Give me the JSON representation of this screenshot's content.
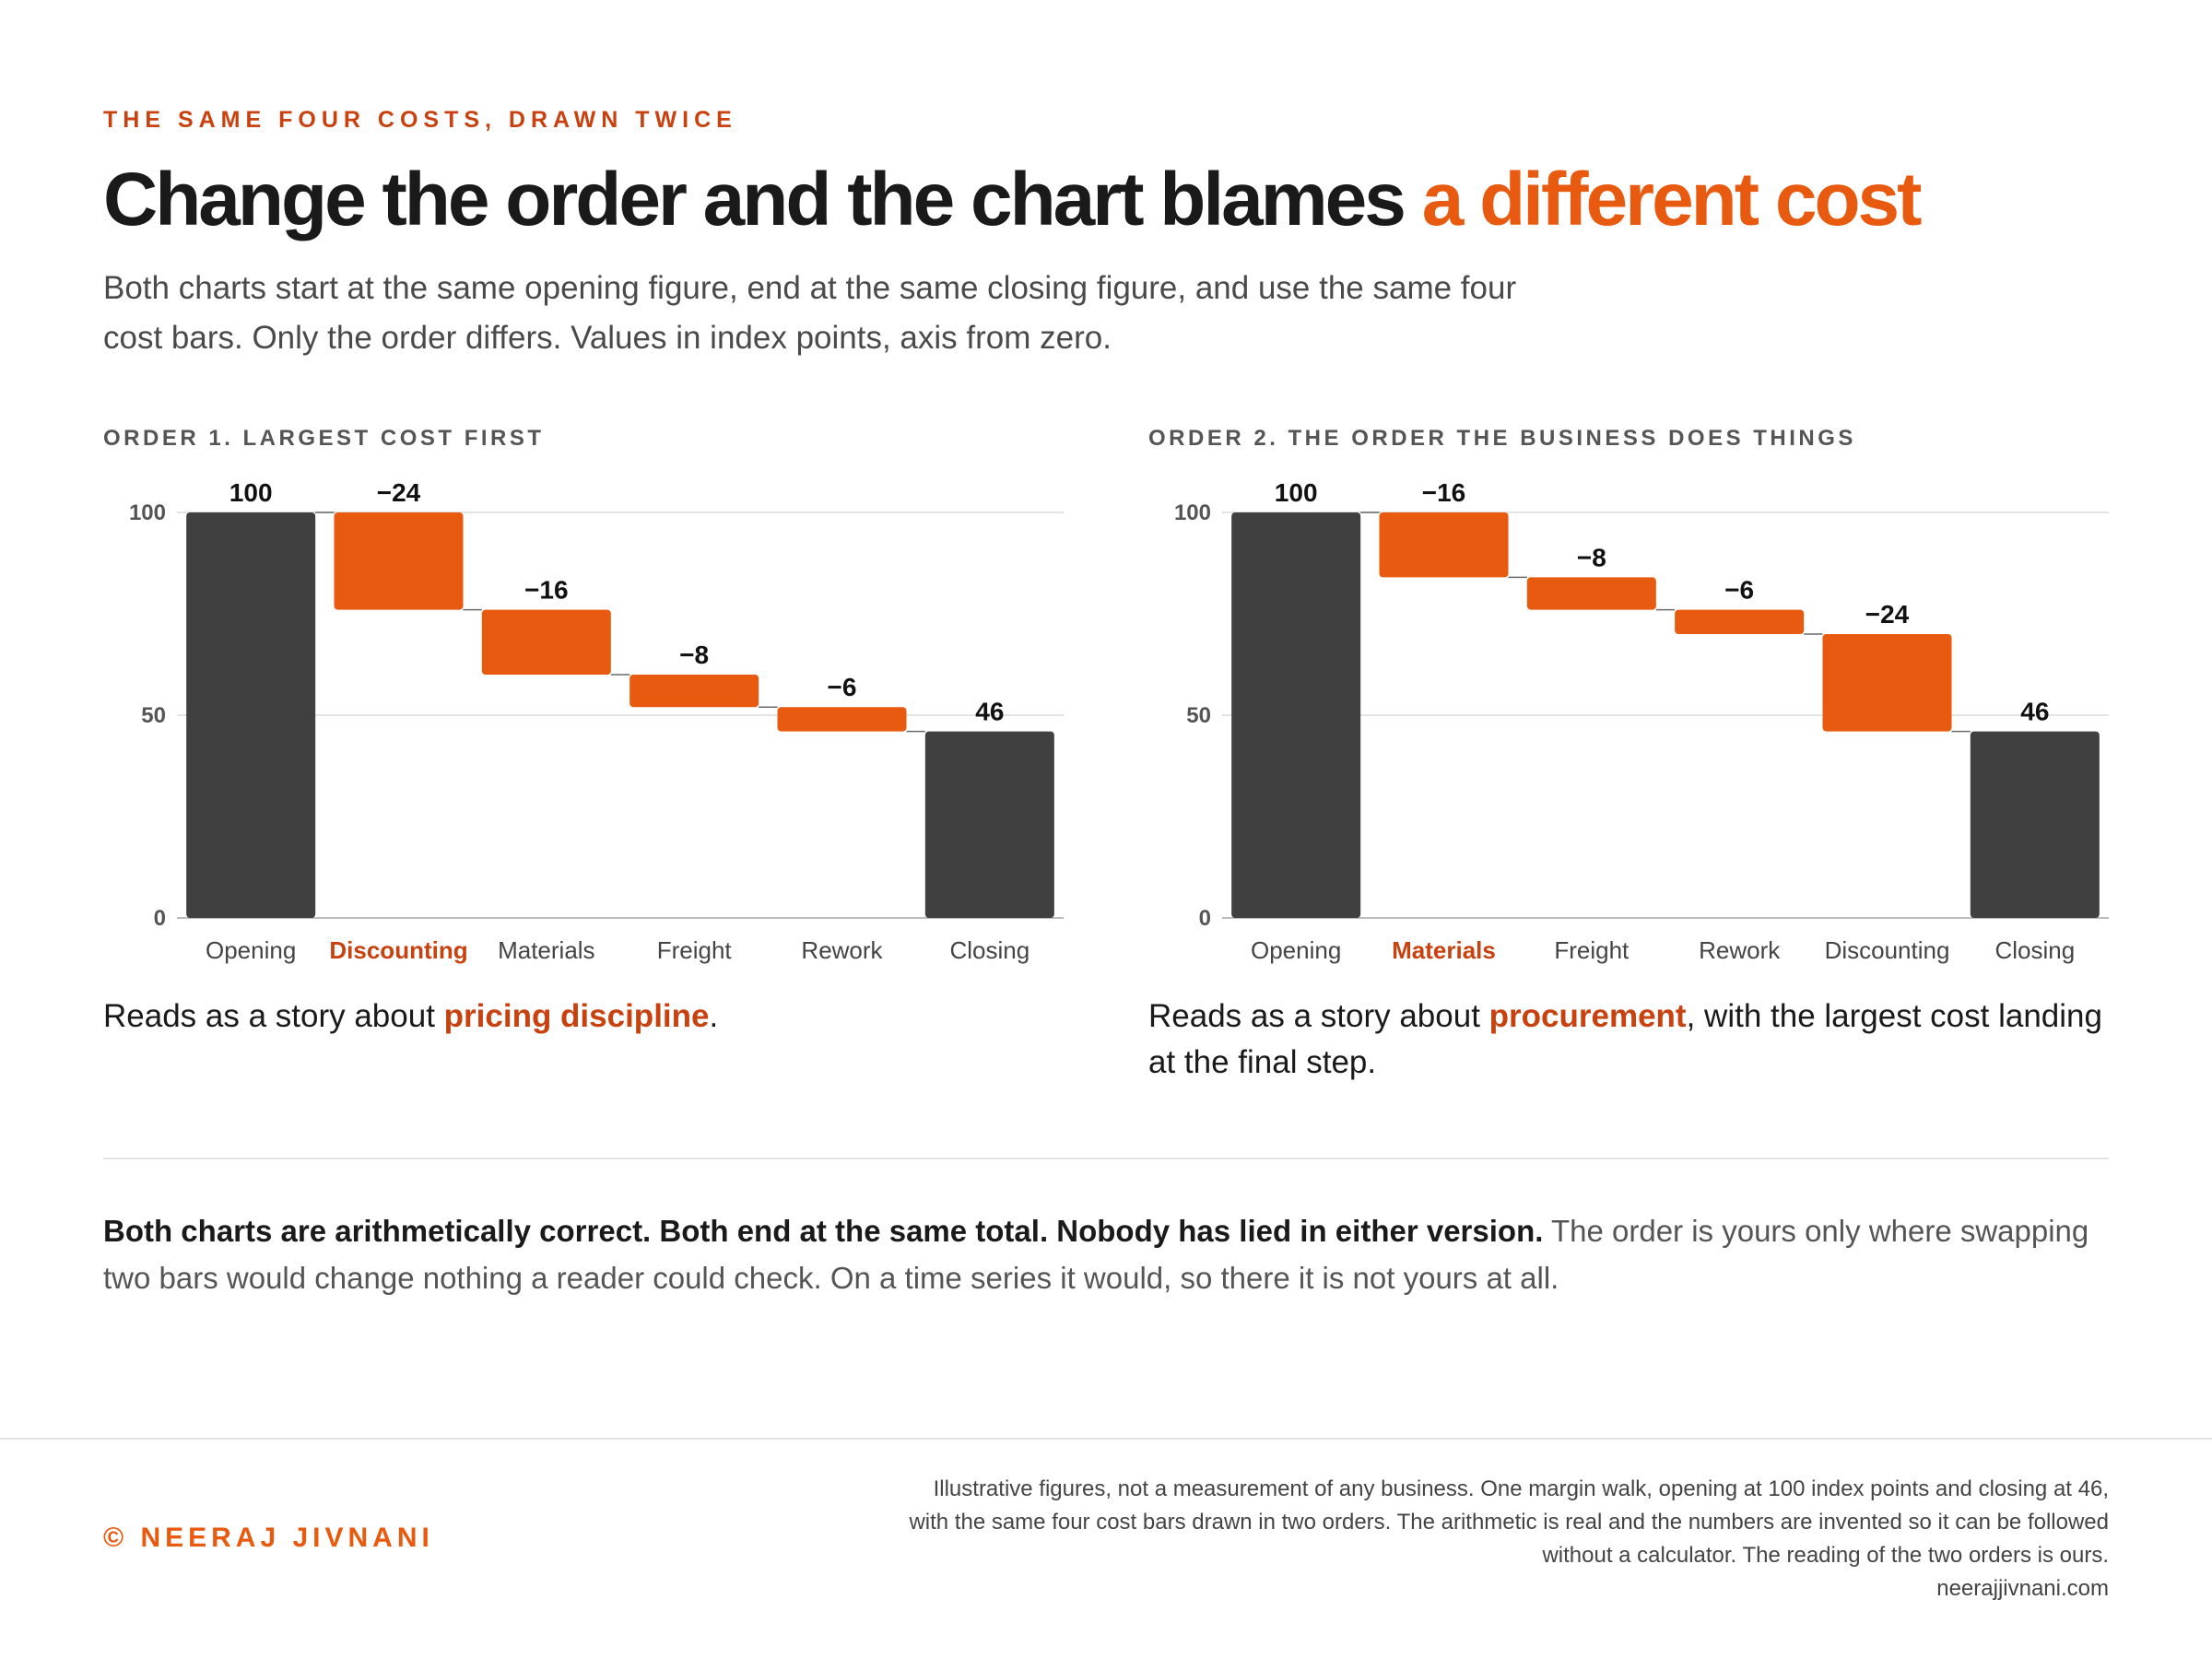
{
  "header": {
    "eyebrow": "THE SAME FOUR COSTS, DRAWN TWICE",
    "title_main": "Change the order and the chart blames",
    "title_accent": "a different cost",
    "lede": "Both charts start at the same opening figure, end at the same closing figure, and use the same four cost bars. Only the order differs. Values in index points, axis from zero."
  },
  "colors": {
    "accent": "#e85a10",
    "accent_text": "#c8410f",
    "total_bar": "#404040",
    "grid": "#e4e4e4"
  },
  "chart_data": [
    {
      "type": "bar",
      "subtype": "waterfall",
      "title": "ORDER 1. LARGEST COST FIRST",
      "categories": [
        "Opening",
        "Discounting",
        "Materials",
        "Freight",
        "Rework",
        "Closing"
      ],
      "values": [
        100,
        -24,
        -16,
        -8,
        -6,
        46
      ],
      "labels": [
        "100",
        "−24",
        "−16",
        "−8",
        "−6",
        "46"
      ],
      "kinds": [
        "total",
        "delta",
        "delta",
        "delta",
        "delta",
        "total"
      ],
      "highlight_category": "Discounting",
      "yticks": [
        0,
        50,
        100
      ],
      "ylim": [
        0,
        100
      ],
      "grid": true,
      "xlabel": "",
      "ylabel": ""
    },
    {
      "type": "bar",
      "subtype": "waterfall",
      "title": "ORDER 2. THE ORDER THE BUSINESS DOES THINGS",
      "categories": [
        "Opening",
        "Materials",
        "Freight",
        "Rework",
        "Discounting",
        "Closing"
      ],
      "values": [
        100,
        -16,
        -8,
        -6,
        -24,
        46
      ],
      "labels": [
        "100",
        "−16",
        "−8",
        "−6",
        "−24",
        "46"
      ],
      "kinds": [
        "total",
        "delta",
        "delta",
        "delta",
        "delta",
        "total"
      ],
      "highlight_category": "Materials",
      "yticks": [
        0,
        50,
        100
      ],
      "ylim": [
        0,
        100
      ],
      "grid": true,
      "xlabel": "",
      "ylabel": ""
    }
  ],
  "captions": [
    {
      "before": "Reads as a story about ",
      "highlight": "pricing discipline",
      "after": "."
    },
    {
      "before": "Reads as a story about ",
      "highlight": "procurement",
      "after": ", with the largest cost landing at the final step."
    }
  ],
  "closing": {
    "bold": "Both charts are arithmetically correct. Both end at the same total. Nobody has lied in either version.",
    "rest": " The order is yours only where swapping two bars would change nothing a reader could check. On a time series it would, so there it is not yours at all."
  },
  "footer": {
    "copyright": "© NEERAJ JIVNANI",
    "note_lines": [
      "Illustrative figures, not a measurement of any business. One margin walk, opening at 100 index points and closing at 46,",
      "with the same four cost bars drawn in two orders. The arithmetic is real and the numbers are invented so it can be followed",
      "without a calculator. The reading of the two orders is ours."
    ],
    "site": "neerajjivnani.com"
  }
}
